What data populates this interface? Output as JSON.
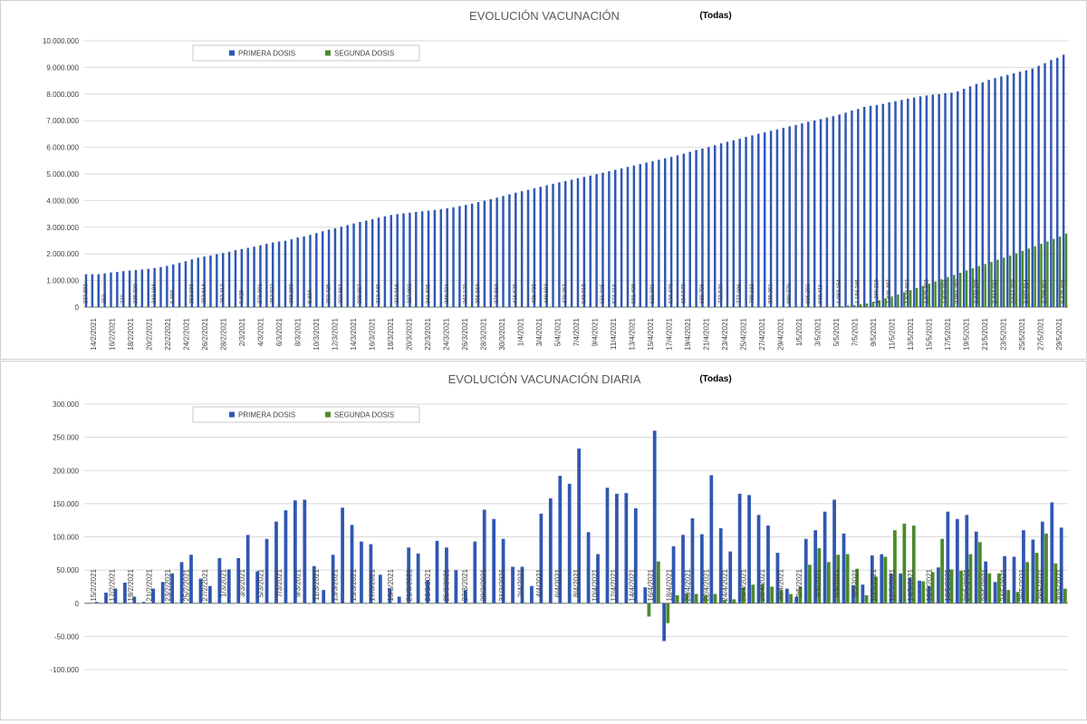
{
  "colors": {
    "first": "#2f57b3",
    "second": "#4c8a2a",
    "grid": "#d9d9d9",
    "axis": "#7f7f7f",
    "text": "#404040"
  },
  "chart_data": [
    {
      "type": "bar",
      "title": "EVOLUCIÓN VACUNACIÓN",
      "filter": "(Todas)",
      "ylim": [
        0,
        10000000
      ],
      "yticks": [
        "10.000.000",
        "9.000.000",
        "8.000.000",
        "7.000.000",
        "6.000.000",
        "5.000.000",
        "4.000.000",
        "3.000.000",
        "2.000.000",
        "1.000.000",
        "0"
      ],
      "xtick_labels": [
        "14/2/2021",
        "16/2/2021",
        "18/2/2021",
        "20/2/2021",
        "22/2/2021",
        "24/2/2021",
        "26/2/2021",
        "28/2/2021",
        "2/3/2021",
        "4/3/2021",
        "6/3/2021",
        "8/3/2021",
        "10/3/2021",
        "12/3/2021",
        "14/3/2021",
        "16/3/2021",
        "18/3/2021",
        "20/3/2021",
        "22/3/2021",
        "24/3/2021",
        "26/3/2021",
        "28/3/2021",
        "30/3/2021",
        "1/4/2021",
        "3/4/2021",
        "5/4/2021",
        "7/4/2021",
        "9/4/2021",
        "11/4/2021",
        "13/4/2021",
        "15/4/2021",
        "17/4/2021",
        "19/4/2021",
        "21/4/2021",
        "23/4/2021",
        "25/4/2021",
        "27/4/2021",
        "29/4/2021",
        "1/5/2021",
        "3/5/2021",
        "5/5/2021",
        "7/5/2021",
        "9/5/2021",
        "11/5/2021",
        "13/5/2021",
        "15/5/2021",
        "17/5/2021",
        "19/5/2021",
        "21/5/2021",
        "23/5/2021",
        "25/5/2021",
        "27/5/2021",
        "29/5/2021"
      ],
      "legend": [
        "PRIMERA DOSIS",
        "SEGUNDA DOSIS"
      ],
      "series": [
        {
          "name": "PRIMERA DOSIS",
          "values": [
            1237883,
            1238253,
            1238320,
            1270002,
            1303698,
            1323988,
            1353614,
            1377906,
            1395929,
            1415624,
            1440822,
            1470661,
            1505884,
            1549084,
            1602184,
            1660394,
            1725681,
            1797095,
            1856831,
            1901675,
            1942430,
            1990571,
            2033212,
            2082416,
            2138916,
            2181376,
            2226695,
            2271060,
            2322862,
            2376874,
            2430099,
            2465586,
            2492768,
            2548090,
            2615081,
            2652765,
            2714060,
            2782694,
            2849984,
            2913575,
            2962000,
            3018312,
            3081555,
            3142188,
            3197556,
            3246320,
            3300119,
            3361684,
            3412120,
            3460098,
            3493543,
            3519481,
            3547682,
            3573226,
            3598023,
            3624154,
            3650168,
            3676001,
            3712094,
            3751102,
            3794628,
            3839023,
            3887065,
            3943421,
            3997086,
            4056421,
            4110087,
            4172060,
            4236042,
            4296941,
            4354081,
            4405224,
            4466000,
            4517082,
            4575320,
            4632120,
            4683700,
            4735000,
            4786000,
            4839000,
            4890000,
            4940000,
            4992000,
            5045000,
            5100000,
            5155000,
            5210000,
            5265000,
            5318000,
            5372000,
            5427000,
            5480000,
            5534000,
            5590000,
            5640000,
            5700000,
            5760000,
            5830000,
            5900000,
            5955000,
            6010000,
            6080000,
            6150000,
            6210000,
            6264000,
            6320000,
            6390000,
            6450000,
            6510000,
            6560000,
            6620000,
            6670000,
            6730000,
            6790000,
            6840000,
            6900000,
            6960000,
            7010000,
            7060000,
            7120000,
            7170000,
            7230000,
            7300000,
            7380000,
            7440000,
            7520000,
            7560000,
            7590000,
            7630000,
            7690000,
            7730000,
            7780000,
            7830000,
            7870000,
            7913000,
            7946000,
            7980000,
            8000000,
            8030000,
            8050000,
            8100000,
            8200000,
            8290000,
            8380000,
            8440000,
            8530000,
            8600000,
            8660000,
            8720000,
            8780000,
            8840000,
            8890000,
            8960000,
            9060000,
            9160000,
            9280000,
            9360000,
            9476406
          ]
        },
        {
          "name": "SEGUNDA DOSIS",
          "values": [
            0,
            0,
            0,
            0,
            0,
            0,
            0,
            0,
            0,
            0,
            0,
            0,
            0,
            0,
            0,
            0,
            0,
            0,
            0,
            0,
            0,
            0,
            0,
            0,
            0,
            0,
            0,
            0,
            0,
            0,
            0,
            0,
            0,
            0,
            0,
            0,
            0,
            0,
            0,
            0,
            0,
            0,
            0,
            0,
            0,
            0,
            0,
            0,
            0,
            0,
            0,
            0,
            0,
            0,
            0,
            0,
            0,
            0,
            0,
            0,
            0,
            0,
            0,
            0,
            0,
            0,
            0,
            0,
            0,
            0,
            0,
            0,
            0,
            0,
            0,
            0,
            0,
            0,
            0,
            0,
            0,
            0,
            0,
            0,
            0,
            0,
            0,
            0,
            0,
            0,
            0,
            0,
            0,
            0,
            0,
            0,
            0,
            0,
            0,
            0,
            0,
            0,
            0,
            0,
            0,
            0,
            0,
            0,
            0,
            0,
            0,
            0,
            0,
            0,
            0,
            0,
            0,
            0,
            0,
            0,
            20000,
            40000,
            60000,
            80000,
            110000,
            140000,
            200000,
            260000,
            330000,
            400000,
            480000,
            560000,
            640000,
            720000,
            800000,
            880000,
            960000,
            1047334,
            1130000,
            1210000,
            1290000,
            1380000,
            1460000,
            1540000,
            1620000,
            1700000,
            1780000,
            1860000,
            1940000,
            2020000,
            2110000,
            2200000,
            2290000,
            2380000,
            2470000,
            2560000,
            2650000,
            2760000
          ]
        }
      ],
      "bar_labels_first_visible": [
        "237.883",
        "253",
        "320",
        "238.320",
        "243.184",
        "6.958",
        "253.698",
        "253.614",
        "263.412",
        "5.929",
        "271.001",
        "262.822",
        "283.280",
        "8.394",
        "292.425",
        "302.662",
        "309.957",
        "313.446",
        "312.916",
        "327.092",
        "341.605",
        "348.321",
        "347.170",
        "356.564",
        "378.662",
        "416.625",
        "436.733",
        "448.683",
        "470.253",
        "543.918",
        "556.905",
        "574.216",
        "591.438",
        "621.981",
        "634.479",
        "654.579",
        "688.796",
        "722.520",
        "777.086",
        "789.182",
        "839.261",
        "880.370",
        "906.260",
        "948.411",
        "1.062.154",
        "1.184.346",
        "1.266.219",
        "1.406.487",
        "1.524.992",
        "1.676.802",
        "1.870.091",
        "2.051.760",
        "2.222.209",
        "2.414.021",
        "2.517.309",
        "2.697.814",
        "2.788.891",
        "9.476.406"
      ],
      "note": "Second-dose cumulative values estimated from bar heights."
    },
    {
      "type": "bar",
      "title": "EVOLUCIÓN VACUNACIÓN DIARIA",
      "filter": "(Todas)",
      "ylim": [
        -100000,
        300000
      ],
      "yticks": [
        "300.000",
        "250.000",
        "200.000",
        "150.000",
        "100.000",
        "50.000",
        "0",
        "-50.000",
        "-100.000"
      ],
      "xtick_labels": [
        "15/2/2021",
        "17/2/2021",
        "19/2/2021",
        "21/2/2021",
        "23/2/2021",
        "25/2/2021",
        "27/2/2021",
        "1/3/2021",
        "3/3/2021",
        "5/3/2021",
        "7/3/2021",
        "9/3/2021",
        "11/3/2021",
        "13/3/2021",
        "15/3/2021",
        "17/3/2021",
        "19/3/2021",
        "21/3/2021",
        "23/3/2021",
        "25/3/2021",
        "27/3/2021",
        "29/3/2021",
        "31/3/2021",
        "2/4/2021",
        "4/4/2021",
        "6/4/2021",
        "8/4/2021",
        "10/4/2021",
        "12/4/2021",
        "14/4/2021",
        "16/4/2021",
        "18/4/2021",
        "20/4/2021",
        "22/4/2021",
        "24/4/2021",
        "26/4/2021",
        "28/4/2021",
        "30/4/2021",
        "2/5/2021",
        "4/5/2021",
        "6/5/2021",
        "8/5/2021",
        "10/5/2021",
        "12/5/2021",
        "14/5/2021",
        "16/5/2021",
        "18/5/2021",
        "20/5/2021",
        "22/5/2021",
        "24/5/2021",
        "26/5/2021",
        "28/5/2021",
        "30/5/2021"
      ],
      "legend": [
        "PRIMERA DOSIS",
        "SEGUNDA DOSIS"
      ],
      "series": [
        {
          "name": "PRIMERA DOSIS",
          "values": [
            0,
            2000,
            16000,
            22000,
            31000,
            10000,
            2000,
            22000,
            32000,
            45000,
            62000,
            73000,
            37000,
            26000,
            68000,
            51000,
            68000,
            103000,
            48000,
            97000,
            123000,
            140000,
            155000,
            156000,
            56000,
            20000,
            73000,
            144000,
            118000,
            93000,
            89000,
            43000,
            22000,
            10000,
            84000,
            75000,
            35000,
            94000,
            84000,
            50000,
            20000,
            93000,
            141000,
            127000,
            97000,
            55000,
            55000,
            26000,
            135000,
            158000,
            192000,
            180000,
            233000,
            107000,
            74000,
            174000,
            165000,
            166000,
            143000,
            24000,
            260000,
            -57000,
            86000,
            103000,
            128000,
            104000,
            193000,
            113000,
            78000,
            165000,
            163000,
            133000,
            117000,
            76000,
            22000,
            10000,
            97000,
            110000,
            138000,
            156000,
            105000,
            27000,
            28000,
            72000,
            74000,
            45000,
            45000,
            38000,
            34000,
            26000,
            54000,
            138000,
            127000,
            133000,
            108000,
            63000,
            32000,
            71000,
            70000,
            110000,
            96000,
            123000,
            152000,
            114000
          ]
        },
        {
          "name": "SEGUNDA DOSIS",
          "values": [
            0,
            0,
            0,
            0,
            0,
            0,
            0,
            0,
            0,
            0,
            0,
            0,
            0,
            0,
            0,
            0,
            0,
            0,
            0,
            0,
            0,
            0,
            0,
            0,
            0,
            0,
            0,
            0,
            0,
            0,
            0,
            0,
            0,
            0,
            0,
            0,
            0,
            0,
            0,
            0,
            0,
            0,
            0,
            0,
            0,
            0,
            0,
            0,
            0,
            0,
            0,
            0,
            0,
            0,
            0,
            0,
            0,
            0,
            0,
            -20000,
            63000,
            -30000,
            12000,
            15000,
            14000,
            12000,
            14000,
            5000,
            6000,
            24000,
            28000,
            29000,
            25000,
            20000,
            14000,
            25000,
            58000,
            83000,
            62000,
            73000,
            74000,
            52000,
            12000,
            40000,
            70000,
            110000,
            120000,
            117000,
            33000,
            47000,
            97000,
            51000,
            49000,
            74000,
            92000,
            45000,
            45000,
            20000,
            17000,
            62000,
            76000,
            105000,
            60000,
            22000
          ]
        }
      ],
      "note": "Daily values estimated from bar heights."
    }
  ]
}
